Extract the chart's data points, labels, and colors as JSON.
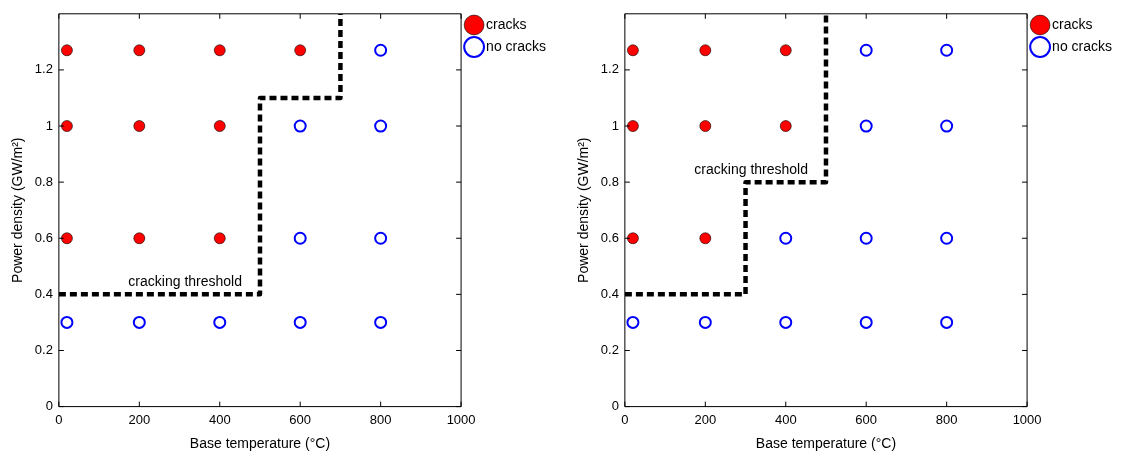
{
  "chart_data": [
    {
      "type": "scatter",
      "xlabel": "Base temperature (°C)",
      "ylabel": "Power density (GW/m²)",
      "xlim": [
        0,
        1000
      ],
      "ylim": [
        0,
        1.4
      ],
      "xticks": [
        0,
        200,
        400,
        600,
        800,
        1000
      ],
      "yticks": [
        0,
        0.2,
        0.4,
        0.6,
        0.8,
        1,
        1.2
      ],
      "grid": false,
      "legend": "top right",
      "marker": "circle",
      "annotations": [
        "cracking threshold"
      ],
      "series": [
        {
          "name": "cracks",
          "color": "#ff0000",
          "x": [
            20,
            200,
            400,
            600,
            20,
            200,
            400,
            20,
            200,
            400
          ],
          "values": [
            1.27,
            1.27,
            1.27,
            1.27,
            1,
            1,
            1,
            0.6,
            0.6,
            0.6
          ]
        },
        {
          "name": "no cracks",
          "color": "#0000ff",
          "x": [
            800,
            600,
            800,
            600,
            800,
            20,
            200,
            400,
            600,
            800
          ],
          "values": [
            1.27,
            1,
            1,
            0.6,
            0.6,
            0.3,
            0.3,
            0.3,
            0.3,
            0.3
          ]
        },
        {
          "type": "line",
          "color": "#000000",
          "line_style": "dashed",
          "marker": "none",
          "x": [
            0,
            500,
            500,
            700,
            700
          ],
          "values": [
            0.4,
            0.4,
            1.1,
            1.1,
            1.4
          ]
        }
      ]
    },
    {
      "type": "scatter",
      "xlabel": "Base temperature (°C)",
      "ylabel": "Power density (GW/m²)",
      "xlim": [
        0,
        1000
      ],
      "ylim": [
        0,
        1.4
      ],
      "xticks": [
        0,
        200,
        400,
        600,
        800,
        1000
      ],
      "yticks": [
        0,
        0.2,
        0.4,
        0.6,
        0.8,
        1,
        1.2
      ],
      "grid": false,
      "legend": "top right",
      "marker": "circle",
      "annotations": [
        "cracking threshold"
      ],
      "series": [
        {
          "name": "cracks",
          "color": "#ff0000",
          "x": [
            20,
            200,
            400,
            20,
            200,
            400,
            20,
            200
          ],
          "values": [
            1.27,
            1.27,
            1.27,
            1,
            1,
            1,
            0.6,
            0.6
          ]
        },
        {
          "name": "no cracks",
          "color": "#0000ff",
          "x": [
            600,
            800,
            600,
            800,
            400,
            600,
            800,
            20,
            200,
            400,
            600,
            800
          ],
          "values": [
            1.27,
            1.27,
            1,
            1,
            0.6,
            0.6,
            0.6,
            0.3,
            0.3,
            0.3,
            0.3,
            0.3
          ]
        },
        {
          "type": "line",
          "color": "#000000",
          "line_style": "dashed",
          "marker": "none",
          "x": [
            0,
            300,
            300,
            500,
            500
          ],
          "values": [
            0.4,
            0.4,
            0.8,
            0.8,
            1.4
          ]
        }
      ]
    }
  ]
}
